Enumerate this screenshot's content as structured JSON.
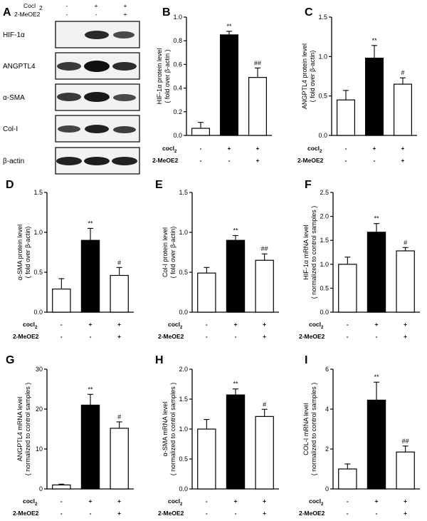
{
  "blot": {
    "letter": "A",
    "conditions": [
      {
        "label": "Cocl",
        "sub": "2",
        "marks": [
          "-",
          "+",
          "+"
        ]
      },
      {
        "label": "2-MeOE2",
        "sub": "",
        "marks": [
          "-",
          "-",
          "+"
        ]
      }
    ],
    "proteins": [
      "HIF-1α",
      "ANGPTL4",
      "α-SMA",
      "Col-I",
      "β-actin"
    ]
  },
  "groups": {
    "row1": "cocl",
    "row1_sub": "2",
    "row2": "2-MeOE2",
    "row1_marks": [
      "-",
      "+",
      "+"
    ],
    "row2_marks": [
      "-",
      "-",
      "+"
    ]
  },
  "colors": {
    "control_fill": "#ffffff",
    "cocl2_fill": "#000000",
    "meoe2_fill": "#ffffff",
    "stroke": "#000000"
  },
  "chart_data": [
    {
      "panel": "B",
      "type": "bar",
      "ylabel_lines": [
        "HIF-1α protein level",
        "( fold over β-actin )"
      ],
      "ylim": [
        0,
        1.0
      ],
      "yticks": [
        0.0,
        0.2,
        0.4,
        0.6,
        0.8,
        1.0
      ],
      "tick_labels": [
        "0.0",
        "0.2",
        "0.4",
        "0.6",
        "0.8",
        "1.0"
      ],
      "values": [
        0.06,
        0.85,
        0.49
      ],
      "errors": [
        0.05,
        0.03,
        0.08
      ],
      "significance": [
        "",
        "**",
        "##"
      ]
    },
    {
      "panel": "C",
      "type": "bar",
      "ylabel_lines": [
        "ANGPTL4 protein level",
        "( fold over β-actin)"
      ],
      "ylim": [
        0,
        1.5
      ],
      "yticks": [
        0.0,
        0.5,
        1.0,
        1.5
      ],
      "tick_labels": [
        "0.0",
        "0.5",
        "1.0",
        "1.5"
      ],
      "values": [
        0.45,
        0.98,
        0.65
      ],
      "errors": [
        0.12,
        0.16,
        0.08
      ],
      "significance": [
        "",
        "**",
        "#"
      ]
    },
    {
      "panel": "D",
      "type": "bar",
      "ylabel_lines": [
        "α-SMA protein level",
        "( fold over β-actin)"
      ],
      "ylim": [
        0,
        1.5
      ],
      "yticks": [
        0.0,
        0.5,
        1.0,
        1.5
      ],
      "tick_labels": [
        "0.0",
        "0.5",
        "1.0",
        "1.5"
      ],
      "values": [
        0.29,
        0.9,
        0.46
      ],
      "errors": [
        0.13,
        0.15,
        0.1
      ],
      "significance": [
        "",
        "**",
        "#"
      ]
    },
    {
      "panel": "E",
      "type": "bar",
      "ylabel_lines": [
        "Col-I protein level",
        "( fold over β-actin)"
      ],
      "ylim": [
        0,
        1.5
      ],
      "yticks": [
        0.0,
        0.5,
        1.0,
        1.5
      ],
      "tick_labels": [
        "0.0",
        "0.5",
        "1.0",
        "1.5"
      ],
      "values": [
        0.49,
        0.9,
        0.65
      ],
      "errors": [
        0.07,
        0.06,
        0.08
      ],
      "significance": [
        "",
        "**",
        "##"
      ]
    },
    {
      "panel": "F",
      "type": "bar",
      "ylabel_lines": [
        "HIF-1α mRNA level",
        "( normalized to control samples )"
      ],
      "ylim": [
        0,
        2.5
      ],
      "yticks": [
        0.0,
        0.5,
        1.0,
        1.5,
        2.0,
        2.5
      ],
      "tick_labels": [
        "0.0",
        "0.5",
        "1.0",
        "1.5",
        "2.0",
        "2.5"
      ],
      "values": [
        1.0,
        1.67,
        1.28
      ],
      "errors": [
        0.15,
        0.18,
        0.07
      ],
      "significance": [
        "",
        "**",
        "#"
      ]
    },
    {
      "panel": "G",
      "type": "bar",
      "ylabel_lines": [
        "ANGPTL4 mRNA level",
        "( normalized to control samples )"
      ],
      "ylim": [
        0,
        30
      ],
      "yticks": [
        0,
        10,
        20,
        30
      ],
      "tick_labels": [
        "0",
        "10",
        "20",
        "30"
      ],
      "values": [
        1.0,
        21.0,
        15.2
      ],
      "errors": [
        0.2,
        2.7,
        1.6
      ],
      "significance": [
        "",
        "**",
        "#"
      ]
    },
    {
      "panel": "H",
      "type": "bar",
      "ylabel_lines": [
        "α-SMA mRNA level",
        "( normalized to control samples )"
      ],
      "ylim": [
        0,
        2.0
      ],
      "yticks": [
        0.0,
        0.5,
        1.0,
        1.5,
        2.0
      ],
      "tick_labels": [
        "0.0",
        "0.5",
        "1.0",
        "1.5",
        "2.0"
      ],
      "values": [
        1.0,
        1.57,
        1.21
      ],
      "errors": [
        0.16,
        0.1,
        0.12
      ],
      "significance": [
        "",
        "**",
        "#"
      ]
    },
    {
      "panel": "I",
      "type": "bar",
      "ylabel_lines": [
        "COL-I mRNA level",
        "( normalized to control samples )"
      ],
      "ylim": [
        0,
        6
      ],
      "yticks": [
        0,
        2,
        4,
        6
      ],
      "tick_labels": [
        "0",
        "2",
        "4",
        "6"
      ],
      "values": [
        1.0,
        4.45,
        1.85
      ],
      "errors": [
        0.25,
        0.9,
        0.3
      ],
      "significance": [
        "",
        "**",
        "##"
      ]
    }
  ]
}
